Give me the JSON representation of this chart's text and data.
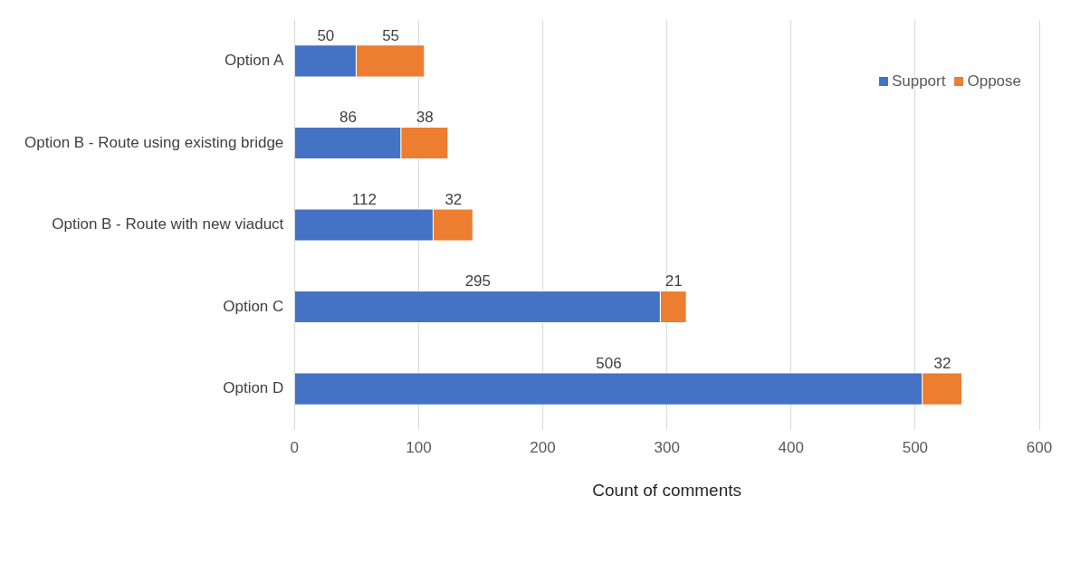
{
  "chart_data": {
    "type": "bar",
    "orientation": "horizontal",
    "stacked": true,
    "xlabel": "Count of comments",
    "categories": [
      "Option A",
      "Option B - Route using existing bridge",
      "Option B - Route with new viaduct",
      "Option C",
      "Option D"
    ],
    "series": [
      {
        "name": "Support",
        "color": "#4472c4",
        "values": [
          50,
          86,
          112,
          295,
          506
        ]
      },
      {
        "name": "Oppose",
        "color": "#ed7d31",
        "values": [
          55,
          38,
          32,
          21,
          32
        ]
      }
    ],
    "xlim": [
      0,
      600
    ],
    "xticks": [
      0,
      100,
      200,
      300,
      400,
      500,
      600
    ],
    "grid": "x",
    "legend": "top right",
    "data_labels": true
  }
}
